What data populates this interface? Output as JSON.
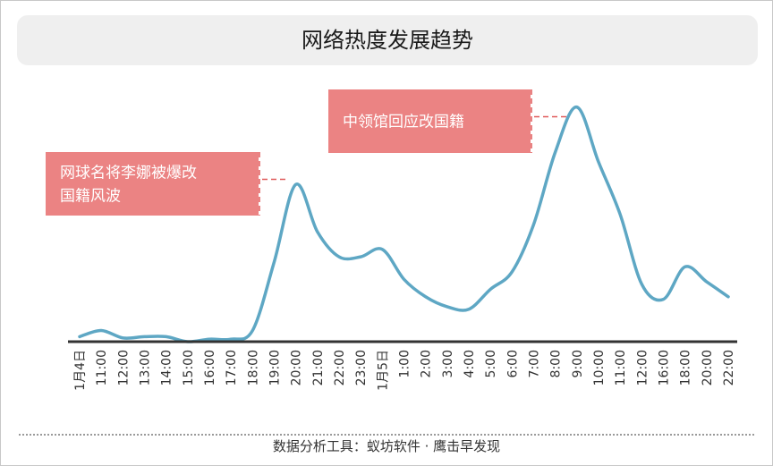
{
  "chart_data": {
    "type": "line",
    "title": "网络热度发展趋势",
    "categories": [
      "1月4日",
      "11:00",
      "12:00",
      "13:00",
      "14:00",
      "15:00",
      "16:00",
      "17:00",
      "18:00",
      "19:00",
      "20:00",
      "21:00",
      "22:00",
      "23:00",
      "1月5日",
      "1:00",
      "2:00",
      "3:00",
      "4:00",
      "5:00",
      "6:00",
      "7:00",
      "8:00",
      "9:00",
      "10:00",
      "11:00",
      "12:00",
      "16:00",
      "18:00",
      "20:00",
      "22:00"
    ],
    "values": [
      2,
      4.5,
      1.5,
      2,
      2,
      0,
      1,
      1,
      4.5,
      32,
      63,
      44,
      34,
      34,
      37,
      25,
      18,
      14,
      13,
      21,
      28,
      47,
      76,
      94,
      72,
      51,
      23,
      17,
      30,
      24,
      18
    ],
    "ylim": [
      0,
      100
    ],
    "grid": false,
    "line_color": "#5ea7c4",
    "annotations": [
      {
        "text_lines": [
          "网球名将李娜被爆改",
          "国籍风波"
        ],
        "category_index": 10,
        "color": "#eb8383"
      },
      {
        "text_lines": [
          "中领馆回应改国籍"
        ],
        "category_index": 23,
        "color": "#eb8383"
      }
    ]
  },
  "footer": "数据分析工具：蚁坊软件 · 鹰击早发现"
}
